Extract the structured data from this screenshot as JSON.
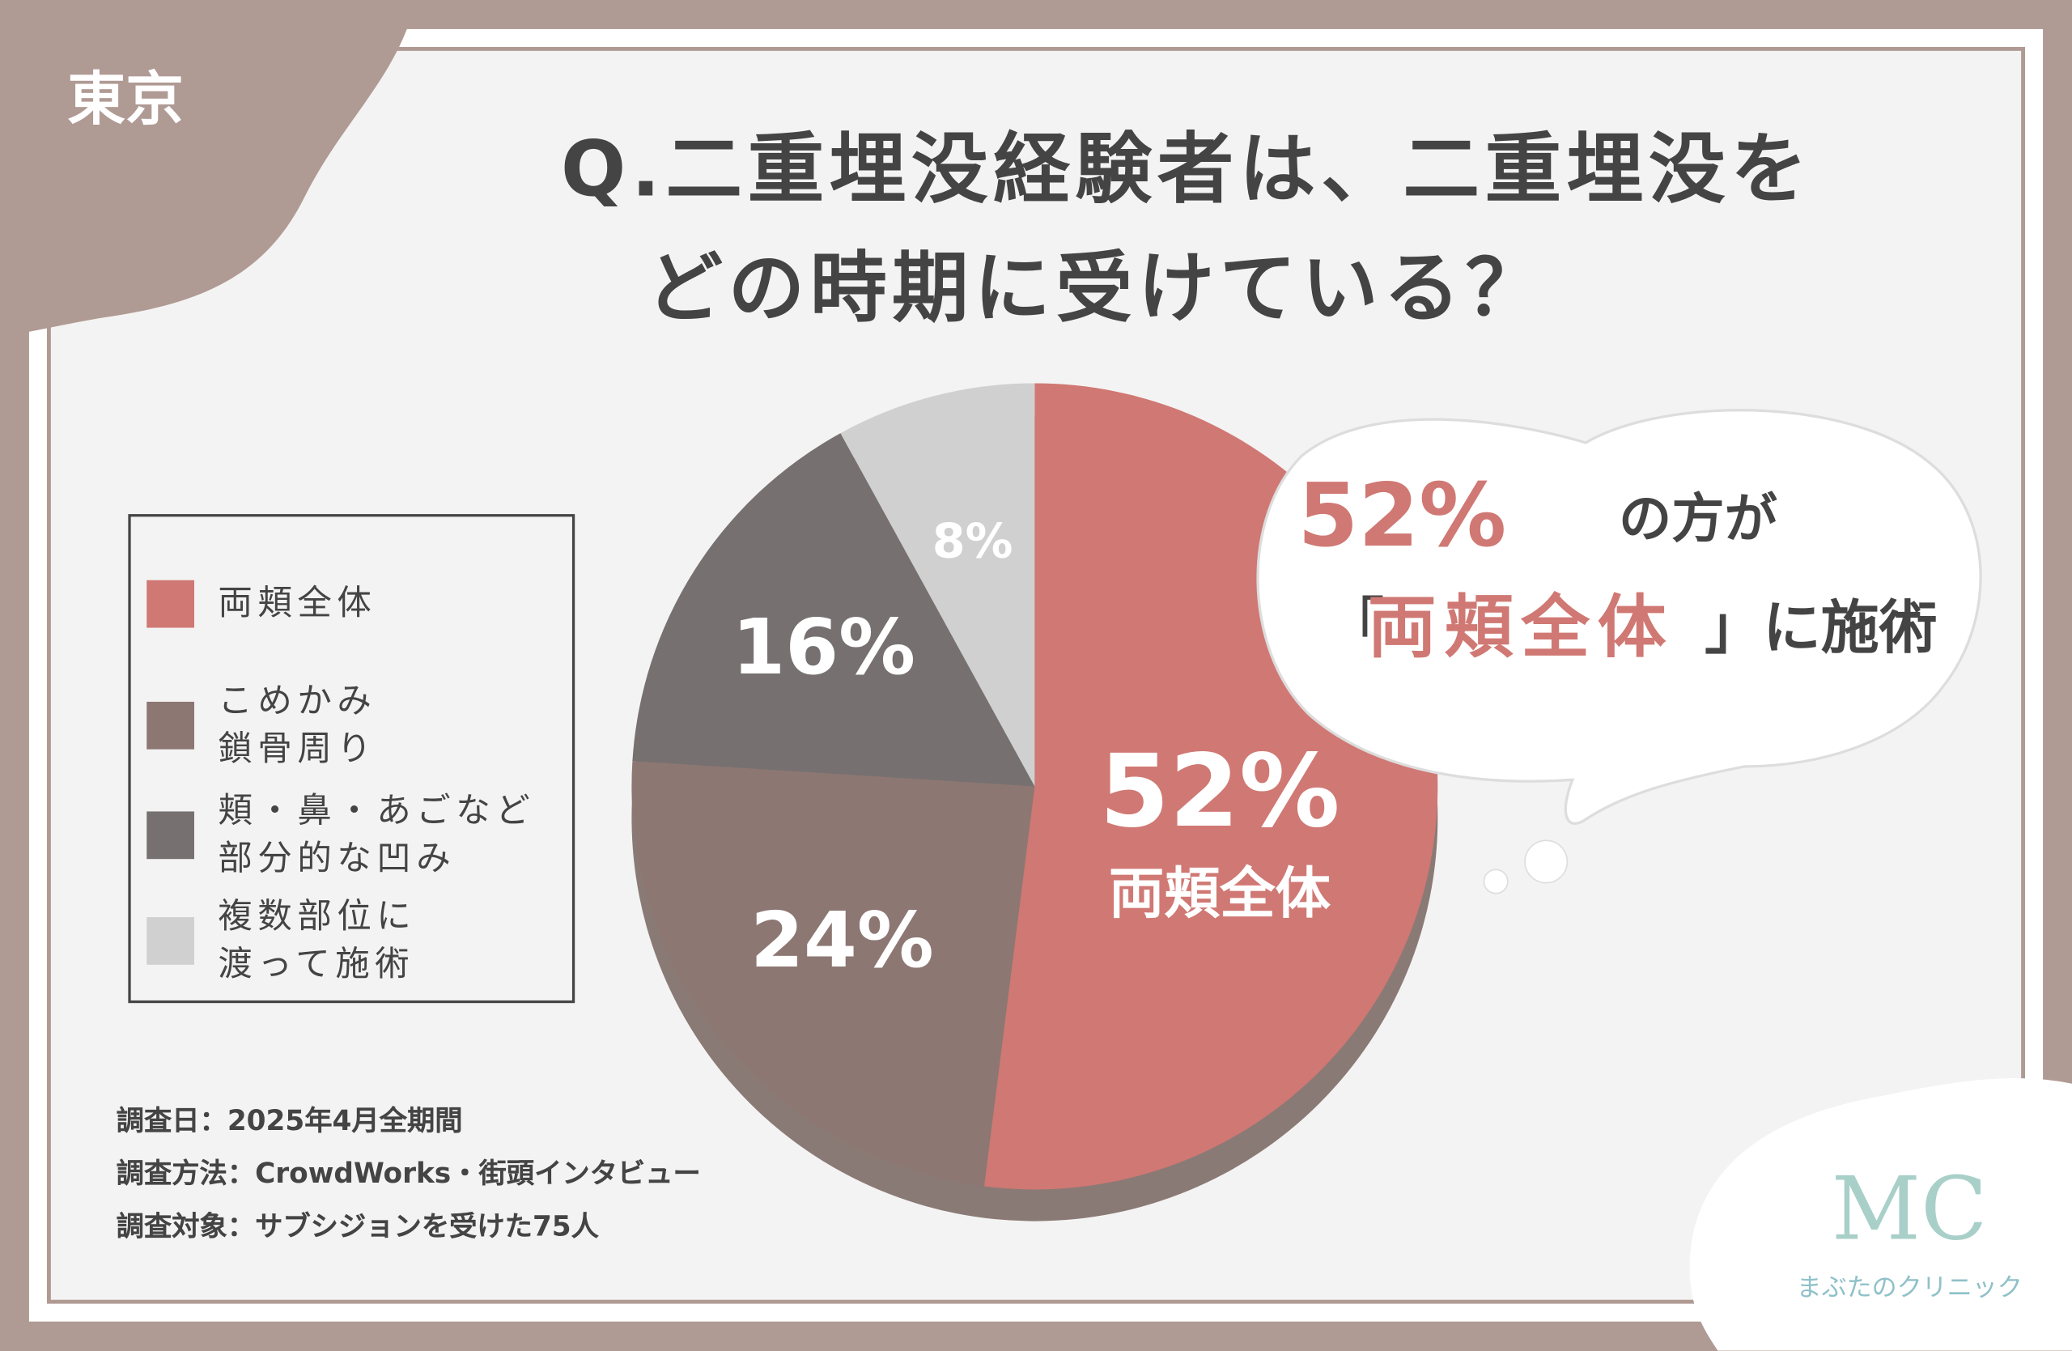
{
  "tag": "東京",
  "title_lines": [
    "Q.二重埋没経験者は、二重埋没を",
    "どの時期に受けている？"
  ],
  "chart_data": {
    "type": "pie",
    "categories": [
      "両頬全体",
      "こめかみ\n鎖骨周り",
      "頬・鼻・あごなど\n部分的な凹み",
      "複数部位に\n渡って施術"
    ],
    "values": [
      52,
      24,
      16,
      8
    ],
    "value_labels": [
      "52%",
      "24%",
      "16%",
      "8%"
    ],
    "colors": [
      "#d07873",
      "#8c7773",
      "#767070",
      "#d0d0d0"
    ],
    "legend": "left"
  },
  "callout": {
    "percent": "52%",
    "line1_rest": "の方が",
    "open": "「",
    "highlight": "両頬全体",
    "close": "」に施術"
  },
  "notes": [
    "調査日：2025年4月全期間",
    "調査方法：CrowdWorks・街頭インタビュー",
    "調査対象：サブシジョンを受けた75人"
  ],
  "logo": {
    "mark": "MC",
    "name": "まぶたのクリニック"
  }
}
